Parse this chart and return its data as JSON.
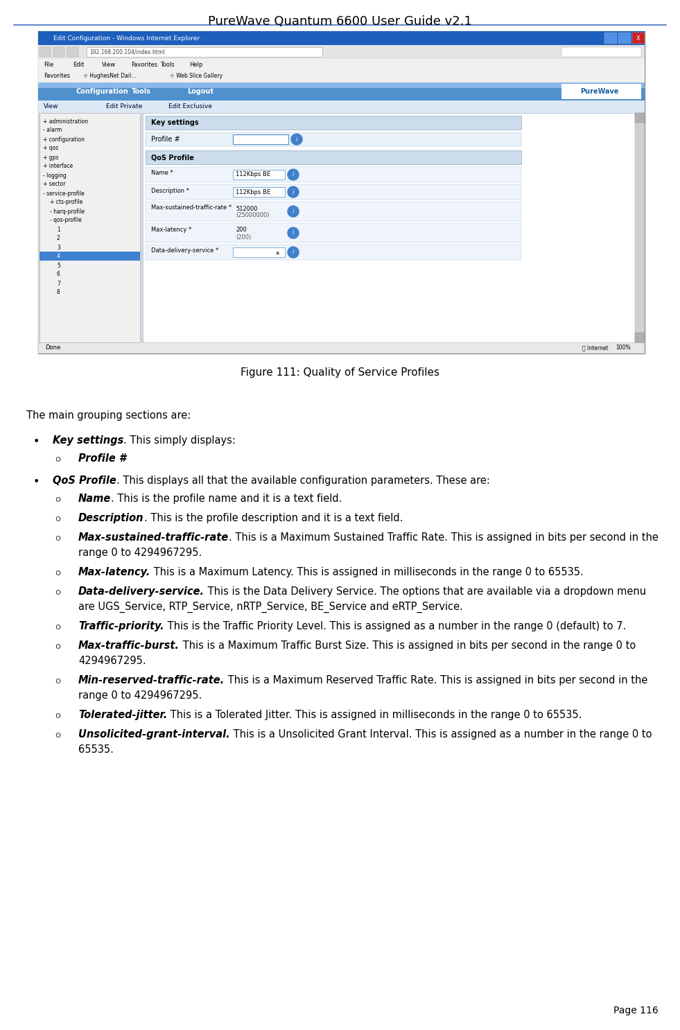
{
  "page_title": "PureWave Quantum 6600 User Guide v2.1",
  "page_number": "Page 116",
  "figure_caption": "Figure 111: Quality of Service Profiles",
  "bg_color": "#ffffff",
  "title_color": "#000000",
  "header_line_color": "#4472c4",
  "body_text_color": "#000000",
  "intro_text": "The main grouping sections are:",
  "bullets": [
    {
      "bold_part": "Key settings",
      "normal_part": ". This simply displays:",
      "sub_items": [
        {
          "bold_part": "Profile #",
          "normal_part": ""
        }
      ]
    },
    {
      "bold_part": "QoS Profile",
      "normal_part": ". This displays all that the available configuration parameters. These are:",
      "sub_items": [
        {
          "bold_part": "Name",
          "normal_part": ". This is the profile name and it is a text field."
        },
        {
          "bold_part": "Description",
          "normal_part": ". This is the profile description and it is a text field."
        },
        {
          "bold_part": "Max-sustained-traffic-rate",
          "normal_part": ". This is a Maximum Sustained Traffic Rate. This is assigned in bits per second in the range 0 to 4294967295."
        },
        {
          "bold_part": "Max-latency.",
          "normal_part": " This is a Maximum Latency. This is assigned in milliseconds in the range 0 to 65535."
        },
        {
          "bold_part": "Data-delivery-service.",
          "normal_part": " This is the Data Delivery Service. The options that are available via a dropdown menu are UGS_Service, RTP_Service, nRTP_Service, BE_Service and eRTP_Service."
        },
        {
          "bold_part": "Traffic-priority.",
          "normal_part": " This is the Traffic Priority Level. This is assigned as a number in the range 0 (default) to 7."
        },
        {
          "bold_part": "Max-traffic-burst.",
          "normal_part": " This is a Maximum Traffic Burst Size. This is assigned in bits per second in the range 0 to 4294967295."
        },
        {
          "bold_part": "Min-reserved-traffic-rate.",
          "normal_part": " This is a Maximum Reserved Traffic Rate. This is assigned in bits per second in the range 0 to 4294967295."
        },
        {
          "bold_part": "Tolerated-jitter.",
          "normal_part": " This is a Tolerated Jitter. This is assigned in milliseconds in the range 0 to 65535."
        },
        {
          "bold_part": "Unsolicited-grant-interval.",
          "normal_part": " This is a Unsolicited Grant Interval. This is assigned as a number in the range 0 to 65535."
        }
      ]
    }
  ],
  "title_fontsize": 13,
  "body_fontsize": 10.5,
  "caption_fontsize": 11,
  "page_num_fontsize": 10
}
